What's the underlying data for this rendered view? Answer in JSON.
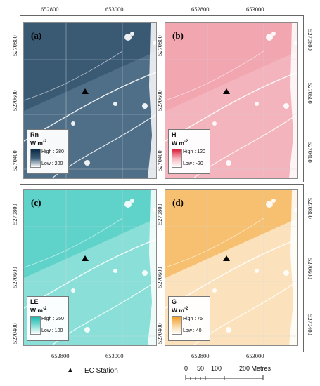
{
  "axis": {
    "x_ticks": [
      "652800",
      "653000"
    ],
    "y_ticks": [
      "5270800",
      "5270600",
      "5270400"
    ]
  },
  "panels": [
    {
      "letter": "(a)",
      "variable": "Rn",
      "unit": "W m",
      "unit_exp": "-2",
      "high": "High : 280",
      "low": "Low : 200",
      "colors": {
        "high": "#0b2a45",
        "mid": "#3e5f79",
        "low": "#ffffff",
        "field": "#4f6e87",
        "field_dark": "#2a4a64"
      }
    },
    {
      "letter": "(b)",
      "variable": "H",
      "unit": "W m",
      "unit_exp": "-2",
      "high": "High : 120",
      "low": "Low : -20",
      "colors": {
        "high": "#d8213b",
        "mid": "#f5b3bb",
        "low": "#ffffff",
        "field": "#f4b4bd",
        "field_dark": "#ee9aa6"
      }
    },
    {
      "letter": "(c)",
      "variable": "LE",
      "unit": "W m",
      "unit_exp": "-2",
      "high": "High : 250",
      "low": "Low : 100",
      "colors": {
        "high": "#1ab8ad",
        "mid": "#7fdcd3",
        "low": "#ffffff",
        "field": "#8ae0d8",
        "field_dark": "#3cc8bd"
      }
    },
    {
      "letter": "(d)",
      "variable": "G",
      "unit": "W m",
      "unit_exp": "-2",
      "high": "High : 75",
      "low": "Low : 40",
      "colors": {
        "high": "#f39c1f",
        "mid": "#f8d29b",
        "low": "#ffffff",
        "field": "#fbe2bd",
        "field_dark": "#f4a431"
      }
    }
  ],
  "key": {
    "marker": "▲",
    "label": "EC Station"
  },
  "scale_bar": {
    "ticks": [
      "0",
      "50",
      "100",
      "200 Metres"
    ]
  }
}
